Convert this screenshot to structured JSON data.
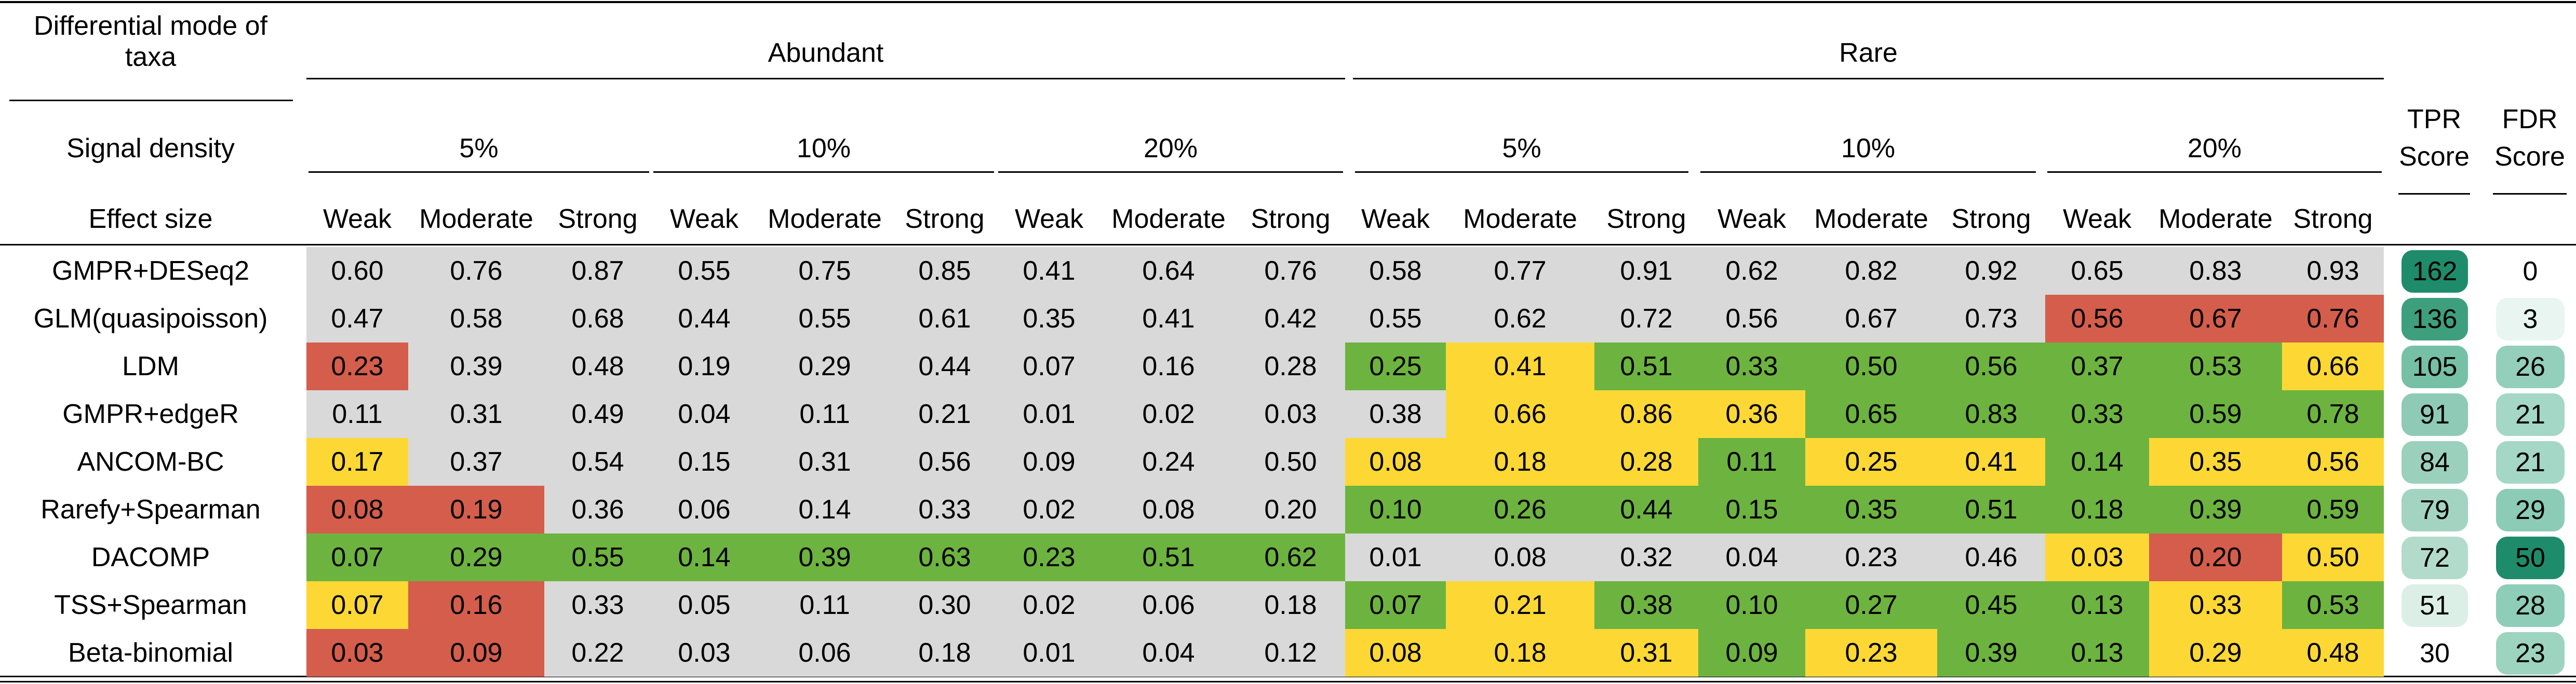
{
  "chart_data": {
    "type": "table",
    "header": {
      "row1_label_line1": "Differential mode of",
      "row1_label_line2": "taxa",
      "row2_label": "Signal density",
      "row3_label": "Effect size",
      "abundant": "Abundant",
      "rare": "Rare",
      "densities": [
        "5%",
        "10%",
        "20%",
        "5%",
        "10%",
        "20%"
      ],
      "effects": [
        "Weak",
        "Moderate",
        "Strong",
        "Weak",
        "Moderate",
        "Strong",
        "Weak",
        "Moderate",
        "Strong",
        "Weak",
        "Moderate",
        "Strong",
        "Weak",
        "Moderate",
        "Strong",
        "Weak",
        "Moderate",
        "Strong"
      ],
      "tpr_line1": "TPR",
      "tpr_line2": "Score",
      "fdr_line1": "FDR",
      "fdr_line2": "Score"
    },
    "colors": {
      "grey": "#d9d9d9",
      "red": "#d45d4c",
      "yellow": "#fdd835",
      "green": "#6db33f",
      "white": "#ffffff"
    },
    "rows": [
      {
        "method": "GMPR+DESeq2",
        "values": [
          "0.60",
          "0.76",
          "0.87",
          "0.55",
          "0.75",
          "0.85",
          "0.41",
          "0.64",
          "0.76",
          "0.58",
          "0.77",
          "0.91",
          "0.62",
          "0.82",
          "0.92",
          "0.65",
          "0.83",
          "0.93"
        ],
        "colors": [
          "grey",
          "grey",
          "grey",
          "grey",
          "grey",
          "grey",
          "grey",
          "grey",
          "grey",
          "grey",
          "grey",
          "grey",
          "grey",
          "grey",
          "grey",
          "grey",
          "grey",
          "grey"
        ],
        "tpr": "162",
        "tpr_color": "#1e8c6b",
        "fdr": "0",
        "fdr_color": "#ffffff"
      },
      {
        "method": "GLM(quasipoisson)",
        "values": [
          "0.47",
          "0.58",
          "0.68",
          "0.44",
          "0.55",
          "0.61",
          "0.35",
          "0.41",
          "0.42",
          "0.55",
          "0.62",
          "0.72",
          "0.56",
          "0.67",
          "0.73",
          "0.56",
          "0.67",
          "0.76"
        ],
        "colors": [
          "grey",
          "grey",
          "grey",
          "grey",
          "grey",
          "grey",
          "grey",
          "grey",
          "grey",
          "grey",
          "grey",
          "grey",
          "grey",
          "grey",
          "grey",
          "red",
          "red",
          "red"
        ],
        "tpr": "136",
        "tpr_color": "#3e9f7e",
        "fdr": "3",
        "fdr_color": "#e8f5f0"
      },
      {
        "method": "LDM",
        "values": [
          "0.23",
          "0.39",
          "0.48",
          "0.19",
          "0.29",
          "0.44",
          "0.07",
          "0.16",
          "0.28",
          "0.25",
          "0.41",
          "0.51",
          "0.33",
          "0.50",
          "0.56",
          "0.37",
          "0.53",
          "0.66"
        ],
        "colors": [
          "red",
          "grey",
          "grey",
          "grey",
          "grey",
          "grey",
          "grey",
          "grey",
          "grey",
          "green",
          "yellow",
          "green",
          "green",
          "green",
          "green",
          "green",
          "green",
          "yellow"
        ],
        "tpr": "105",
        "tpr_color": "#76c0a6",
        "fdr": "26",
        "fdr_color": "#93cfbb"
      },
      {
        "method": "GMPR+edgeR",
        "values": [
          "0.11",
          "0.31",
          "0.49",
          "0.04",
          "0.11",
          "0.21",
          "0.01",
          "0.02",
          "0.03",
          "0.38",
          "0.66",
          "0.86",
          "0.36",
          "0.65",
          "0.83",
          "0.33",
          "0.59",
          "0.78"
        ],
        "colors": [
          "grey",
          "grey",
          "grey",
          "grey",
          "grey",
          "grey",
          "grey",
          "grey",
          "grey",
          "grey",
          "yellow",
          "yellow",
          "yellow",
          "green",
          "green",
          "green",
          "green",
          "green"
        ],
        "tpr": "91",
        "tpr_color": "#8ecab5",
        "fdr": "21",
        "fdr_color": "#a4d7c5"
      },
      {
        "method": "ANCOM-BC",
        "values": [
          "0.17",
          "0.37",
          "0.54",
          "0.15",
          "0.31",
          "0.56",
          "0.09",
          "0.24",
          "0.50",
          "0.08",
          "0.18",
          "0.28",
          "0.11",
          "0.25",
          "0.41",
          "0.14",
          "0.35",
          "0.56"
        ],
        "colors": [
          "yellow",
          "grey",
          "grey",
          "grey",
          "grey",
          "grey",
          "grey",
          "grey",
          "grey",
          "yellow",
          "yellow",
          "yellow",
          "green",
          "yellow",
          "yellow",
          "green",
          "yellow",
          "yellow"
        ],
        "tpr": "84",
        "tpr_color": "#9bd0bd",
        "fdr": "21",
        "fdr_color": "#a4d7c5"
      },
      {
        "method": "Rarefy+Spearman",
        "values": [
          "0.08",
          "0.19",
          "0.36",
          "0.06",
          "0.14",
          "0.33",
          "0.02",
          "0.08",
          "0.20",
          "0.10",
          "0.26",
          "0.44",
          "0.15",
          "0.35",
          "0.51",
          "0.18",
          "0.39",
          "0.59"
        ],
        "colors": [
          "red",
          "red",
          "grey",
          "grey",
          "grey",
          "grey",
          "grey",
          "grey",
          "grey",
          "green",
          "green",
          "green",
          "green",
          "green",
          "green",
          "green",
          "green",
          "green"
        ],
        "tpr": "79",
        "tpr_color": "#a3d4c2",
        "fdr": "29",
        "fdr_color": "#8ccbb5"
      },
      {
        "method": "DACOMP",
        "values": [
          "0.07",
          "0.29",
          "0.55",
          "0.14",
          "0.39",
          "0.63",
          "0.23",
          "0.51",
          "0.62",
          "0.01",
          "0.08",
          "0.32",
          "0.04",
          "0.23",
          "0.46",
          "0.03",
          "0.20",
          "0.50"
        ],
        "colors": [
          "green",
          "green",
          "green",
          "green",
          "green",
          "green",
          "green",
          "green",
          "green",
          "grey",
          "grey",
          "grey",
          "grey",
          "grey",
          "grey",
          "yellow",
          "red",
          "yellow"
        ],
        "tpr": "72",
        "tpr_color": "#b2dbcc",
        "fdr": "50",
        "fdr_color": "#1e8c6b"
      },
      {
        "method": "TSS+Spearman",
        "values": [
          "0.07",
          "0.16",
          "0.33",
          "0.05",
          "0.11",
          "0.30",
          "0.02",
          "0.06",
          "0.18",
          "0.07",
          "0.21",
          "0.38",
          "0.10",
          "0.27",
          "0.45",
          "0.13",
          "0.33",
          "0.53"
        ],
        "colors": [
          "yellow",
          "red",
          "grey",
          "grey",
          "grey",
          "grey",
          "grey",
          "grey",
          "grey",
          "green",
          "yellow",
          "green",
          "green",
          "green",
          "green",
          "green",
          "yellow",
          "green"
        ],
        "tpr": "51",
        "tpr_color": "#dcefe7",
        "fdr": "28",
        "fdr_color": "#8ecdb7"
      },
      {
        "method": "Beta-binomial",
        "values": [
          "0.03",
          "0.09",
          "0.22",
          "0.03",
          "0.06",
          "0.18",
          "0.01",
          "0.04",
          "0.12",
          "0.08",
          "0.18",
          "0.31",
          "0.09",
          "0.23",
          "0.39",
          "0.13",
          "0.29",
          "0.48"
        ],
        "colors": [
          "red",
          "red",
          "grey",
          "grey",
          "grey",
          "grey",
          "grey",
          "grey",
          "grey",
          "yellow",
          "yellow",
          "yellow",
          "green",
          "yellow",
          "green",
          "green",
          "yellow",
          "yellow"
        ],
        "tpr": "30",
        "tpr_color": "#ffffff",
        "fdr": "23",
        "fdr_color": "#9dd4c0"
      }
    ]
  }
}
